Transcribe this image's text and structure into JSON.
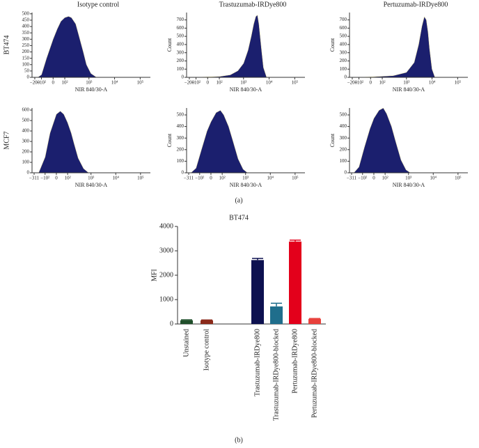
{
  "panel_labels": [
    "(a)",
    "(b)"
  ],
  "chart_data": [
    {
      "type": "area",
      "title": "Isotype control",
      "row_label": "BT474",
      "xlabel": "NIR 840/30-A",
      "color": "#1b1f6e",
      "x": [
        -150,
        -100,
        -50,
        0,
        30,
        60,
        100,
        150,
        200,
        300,
        400,
        600,
        800,
        1200,
        2000
      ],
      "values": [
        0,
        20,
        150,
        300,
        380,
        440,
        470,
        480,
        470,
        420,
        330,
        200,
        100,
        30,
        0
      ],
      "xlim": [
        -260,
        250000
      ],
      "ylim": [
        0,
        510
      ],
      "xticks": [
        {
          "value": -200,
          "label": "−200"
        },
        {
          "value": -100,
          "label": "−10²"
        },
        0,
        {
          "value": 100,
          "label": "10²"
        },
        {
          "value": 1000,
          "label": "10³"
        },
        {
          "value": 10000,
          "label": "10⁴"
        },
        {
          "value": 100000,
          "label": "10⁵"
        }
      ],
      "yticks": [
        0,
        50,
        100,
        150,
        200,
        250,
        300,
        350,
        400,
        450,
        500
      ]
    },
    {
      "type": "area",
      "title": "Trastuzumab-IRDye800",
      "xlabel": "NIR 840/30-A",
      "ylabel": "Count",
      "color": "#1b1f6e",
      "x": [
        -100,
        0,
        100,
        300,
        600,
        1000,
        1500,
        2000,
        2500,
        3000,
        3500,
        4000,
        5000,
        6000,
        8000
      ],
      "values": [
        0,
        5,
        10,
        30,
        80,
        170,
        330,
        500,
        650,
        740,
        760,
        650,
        350,
        120,
        0
      ],
      "xlim": [
        -260,
        250000
      ],
      "ylim": [
        0,
        790
      ],
      "xticks": [
        {
          "value": -200,
          "label": "−200"
        },
        {
          "value": -100,
          "label": "−10²"
        },
        0,
        {
          "value": 100,
          "label": "10²"
        },
        {
          "value": 1000,
          "label": "10³"
        },
        {
          "value": 10000,
          "label": "10⁴"
        },
        {
          "value": 100000,
          "label": "10⁵"
        }
      ],
      "yticks": [
        0,
        100,
        200,
        300,
        400,
        500,
        600,
        700
      ]
    },
    {
      "type": "area",
      "title": "Pertuzumab-IRDye800",
      "xlabel": "NIR 840/30-A",
      "ylabel": "Count",
      "color": "#1b1f6e",
      "x": [
        -100,
        0,
        300,
        1000,
        2000,
        3000,
        4000,
        5000,
        6000,
        7000,
        8000,
        10000,
        13000
      ],
      "values": [
        0,
        5,
        20,
        60,
        180,
        400,
        620,
        740,
        700,
        550,
        350,
        100,
        0
      ],
      "xlim": [
        -260,
        250000
      ],
      "ylim": [
        0,
        790
      ],
      "xticks": [
        {
          "value": -200,
          "label": "−200"
        },
        {
          "value": -100,
          "label": "−10²"
        },
        0,
        {
          "value": 100,
          "label": "10²"
        },
        {
          "value": 1000,
          "label": "10³"
        },
        {
          "value": 10000,
          "label": "10⁴"
        },
        {
          "value": 100000,
          "label": "10⁵"
        }
      ],
      "yticks": [
        0,
        100,
        200,
        300,
        400,
        500,
        600,
        700
      ]
    },
    {
      "type": "area",
      "row_label": "MCF7",
      "xlabel": "NIR 840/30-A",
      "color": "#1b1f6e",
      "x": [
        -200,
        -100,
        -50,
        0,
        30,
        60,
        100,
        150,
        200,
        300,
        500,
        800
      ],
      "values": [
        0,
        150,
        380,
        560,
        590,
        560,
        480,
        380,
        280,
        140,
        40,
        0
      ],
      "xlim": [
        -380,
        250000
      ],
      "ylim": [
        0,
        620
      ],
      "xticks": [
        {
          "value": -311,
          "label": "−311"
        },
        {
          "value": -100,
          "label": "−10²"
        },
        0,
        {
          "value": 100,
          "label": "10²"
        },
        {
          "value": 1000,
          "label": "10³"
        },
        {
          "value": 10000,
          "label": "10⁴"
        },
        {
          "value": 100000,
          "label": "10⁵"
        }
      ],
      "yticks": [
        0,
        100,
        200,
        300,
        400,
        500,
        600
      ]
    },
    {
      "type": "area",
      "xlabel": "NIR 840/30-A",
      "ylabel": "Count",
      "color": "#1b1f6e",
      "x": [
        -250,
        -150,
        -80,
        -30,
        0,
        40,
        80,
        120,
        200,
        300,
        500,
        800,
        1200
      ],
      "values": [
        0,
        40,
        200,
        360,
        440,
        520,
        540,
        500,
        400,
        280,
        120,
        30,
        0
      ],
      "xlim": [
        -380,
        250000
      ],
      "ylim": [
        0,
        560
      ],
      "xticks": [
        {
          "value": -311,
          "label": "−311"
        },
        {
          "value": -100,
          "label": "−10²"
        },
        0,
        {
          "value": 100,
          "label": "10²"
        },
        {
          "value": 1000,
          "label": "10³"
        },
        {
          "value": 10000,
          "label": "10⁴"
        },
        {
          "value": 100000,
          "label": "10⁵"
        }
      ],
      "yticks": [
        0,
        100,
        200,
        300,
        400,
        500
      ]
    },
    {
      "type": "area",
      "xlabel": "NIR 840/30-A",
      "ylabel": "Count",
      "color": "#1b1f6e",
      "x": [
        -250,
        -150,
        -80,
        -30,
        0,
        40,
        80,
        120,
        200,
        300,
        500,
        800,
        1200
      ],
      "values": [
        0,
        50,
        220,
        380,
        470,
        540,
        560,
        510,
        400,
        270,
        110,
        25,
        0
      ],
      "xlim": [
        -380,
        250000
      ],
      "ylim": [
        0,
        560
      ],
      "xticks": [
        {
          "value": -311,
          "label": "−311"
        },
        {
          "value": -100,
          "label": "−10²"
        },
        0,
        {
          "value": 100,
          "label": "10²"
        },
        {
          "value": 1000,
          "label": "10³"
        },
        {
          "value": 10000,
          "label": "10⁴"
        },
        {
          "value": 100000,
          "label": "10⁵"
        }
      ],
      "yticks": [
        0,
        100,
        200,
        300,
        400,
        500
      ]
    },
    {
      "type": "bar",
      "title": "BT474",
      "ylabel": "MFI",
      "categories": [
        "Unstained",
        "Isotype control",
        "Trastuzumab-IRDye800",
        "Trastuzumab-IRDye800-blocked",
        "Pertuzumab-IRDye800",
        "Pertuzumab-IRDye800-blocked"
      ],
      "values": [
        150,
        150,
        2620,
        720,
        3380,
        210
      ],
      "errors": [
        20,
        15,
        70,
        130,
        60,
        15
      ],
      "colors": [
        "#1f4e2a",
        "#8b2a1a",
        "#0d1150",
        "#1f6e8c",
        "#e3001b",
        "#e8413c"
      ],
      "ylim": [
        0,
        4000
      ],
      "yticks": [
        0,
        1000,
        2000,
        3000,
        4000
      ]
    }
  ]
}
